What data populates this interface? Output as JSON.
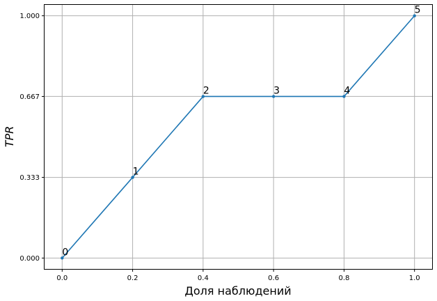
{
  "chart_data": {
    "type": "line",
    "xlabel": "Доля наблюдений",
    "ylabel": "TPR",
    "xlim": [
      -0.05,
      1.05
    ],
    "ylim": [
      -0.045,
      1.045
    ],
    "xticks": [
      0.0,
      0.2,
      0.4,
      0.6,
      0.8,
      1.0
    ],
    "xtick_labels": [
      "0.0",
      "0.2",
      "0.4",
      "0.6",
      "0.8",
      "1.0"
    ],
    "yticks": [
      0.0,
      0.333,
      0.667,
      1.0
    ],
    "ytick_labels": [
      "0.000",
      "0.333",
      "0.667",
      "1.000"
    ],
    "grid": true,
    "line_color": "#1f77b4",
    "series": [
      {
        "x": [
          0.0,
          0.2,
          0.4,
          0.6,
          0.8,
          1.0
        ],
        "values": [
          0.0,
          0.333,
          0.667,
          0.667,
          0.667,
          1.0
        ],
        "point_labels": [
          "0",
          "1",
          "2",
          "3",
          "4",
          "5"
        ]
      }
    ]
  }
}
